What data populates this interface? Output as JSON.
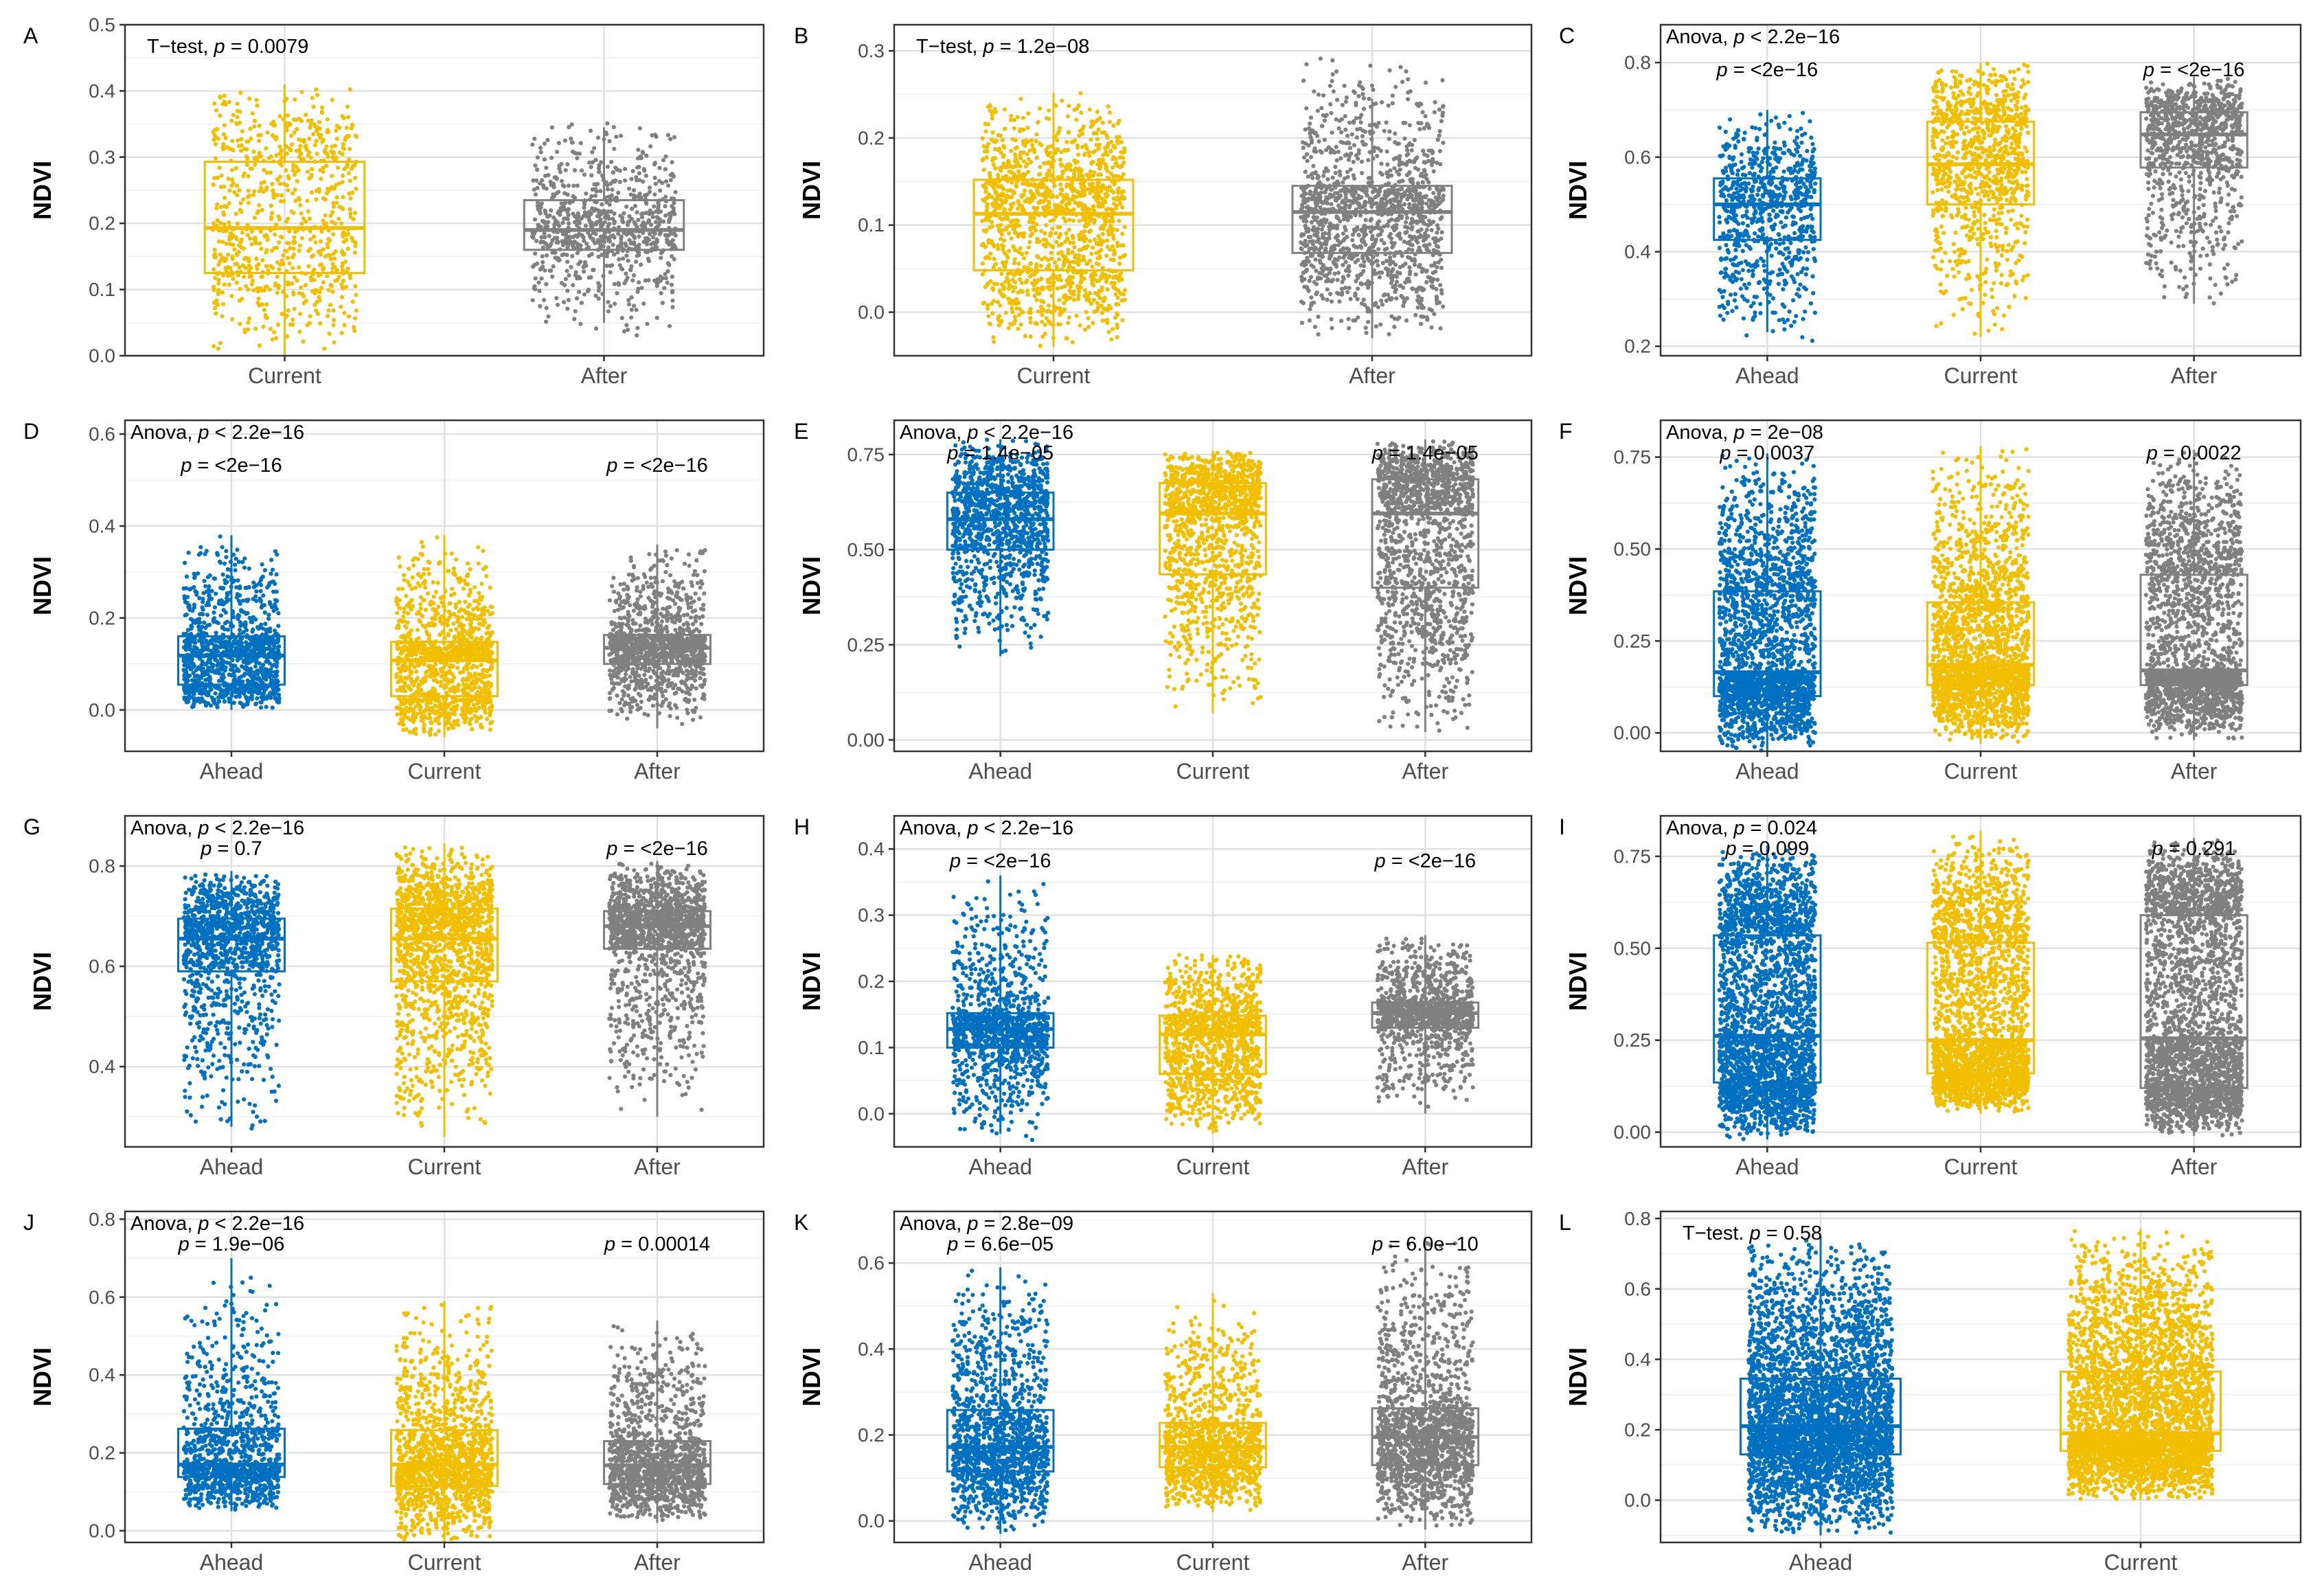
{
  "figure": {
    "colors": {
      "Ahead": "#0070C0",
      "Current": "#F2BF00",
      "After": "#808080"
    }
  },
  "chart_data": [
    {
      "panel": "A",
      "type": "box",
      "ylabel": "NDVI",
      "ylim": [
        0,
        0.5
      ],
      "yticks": [
        0.0,
        0.1,
        0.2,
        0.3,
        0.4,
        0.5
      ],
      "categories": [
        "Current",
        "After"
      ],
      "boxes": [
        {
          "group": "Current",
          "q1": 0.125,
          "median": 0.193,
          "q3": 0.293,
          "wlo": 0.0,
          "whi": 0.41,
          "ymin": 0.0,
          "ymax": 0.41,
          "n": 800
        },
        {
          "group": "After",
          "q1": 0.16,
          "median": 0.19,
          "q3": 0.235,
          "wlo": 0.05,
          "whi": 0.345,
          "ymin": 0.02,
          "ymax": 0.355,
          "n": 800
        }
      ],
      "test": {
        "name": "T−test",
        "sep": ", ",
        "p_op": "=",
        "p_value": "0.0079"
      },
      "pairwise": []
    },
    {
      "panel": "B",
      "type": "box",
      "ylabel": "NDVI",
      "ylim": [
        -0.05,
        0.33
      ],
      "yticks": [
        0.0,
        0.1,
        0.2,
        0.3
      ],
      "categories": [
        "Current",
        "After"
      ],
      "boxes": [
        {
          "group": "Current",
          "q1": 0.048,
          "median": 0.113,
          "q3": 0.152,
          "wlo": -0.04,
          "whi": 0.252,
          "ymin": -0.04,
          "ymax": 0.252,
          "n": 1400
        },
        {
          "group": "After",
          "q1": 0.068,
          "median": 0.115,
          "q3": 0.145,
          "wlo": -0.03,
          "whi": 0.245,
          "ymin": -0.03,
          "ymax": 0.3,
          "n": 1400
        }
      ],
      "test": {
        "name": "T−test",
        "sep": ", ",
        "p_op": "=",
        "p_value": "1.2e−08"
      },
      "pairwise": []
    },
    {
      "panel": "C",
      "type": "box",
      "ylabel": "NDVI",
      "ylim": [
        0.18,
        0.88
      ],
      "yticks": [
        0.2,
        0.4,
        0.6,
        0.8
      ],
      "categories": [
        "Ahead",
        "Current",
        "After"
      ],
      "boxes": [
        {
          "group": "Ahead",
          "q1": 0.425,
          "median": 0.5,
          "q3": 0.555,
          "wlo": 0.23,
          "whi": 0.7,
          "ymin": 0.2,
          "ymax": 0.7,
          "n": 800
        },
        {
          "group": "Current",
          "q1": 0.5,
          "median": 0.585,
          "q3": 0.675,
          "wlo": 0.22,
          "whi": 0.8,
          "ymin": 0.22,
          "ymax": 0.8,
          "n": 1000
        },
        {
          "group": "After",
          "q1": 0.578,
          "median": 0.648,
          "q3": 0.695,
          "wlo": 0.29,
          "whi": 0.77,
          "ymin": 0.29,
          "ymax": 0.77,
          "n": 1000
        }
      ],
      "test": {
        "name": "Anova",
        "sep": ", ",
        "p_op": "<",
        "p_value": "2.2e−16"
      },
      "pairwise": [
        {
          "group": "Ahead",
          "p_op": "=",
          "p_value": "<2e−16"
        },
        {
          "group": "After",
          "p_op": "=",
          "p_value": "<2e−16"
        }
      ]
    },
    {
      "panel": "D",
      "type": "box",
      "ylabel": "NDVI",
      "ylim": [
        -0.09,
        0.63
      ],
      "yticks": [
        0.0,
        0.2,
        0.4,
        0.6
      ],
      "categories": [
        "Ahead",
        "Current",
        "After"
      ],
      "boxes": [
        {
          "group": "Ahead",
          "q1": 0.055,
          "median": 0.118,
          "q3": 0.16,
          "wlo": 0.0,
          "whi": 0.38,
          "ymin": 0.0,
          "ymax": 0.38,
          "n": 1200
        },
        {
          "group": "Current",
          "q1": 0.03,
          "median": 0.108,
          "q3": 0.148,
          "wlo": -0.06,
          "whi": 0.38,
          "ymin": -0.06,
          "ymax": 0.38,
          "n": 1200
        },
        {
          "group": "After",
          "q1": 0.1,
          "median": 0.135,
          "q3": 0.163,
          "wlo": -0.04,
          "whi": 0.36,
          "ymin": -0.04,
          "ymax": 0.36,
          "n": 1200
        }
      ],
      "test": {
        "name": "Anova",
        "sep": ", ",
        "p_op": "<",
        "p_value": "2.2e−16"
      },
      "pairwise": [
        {
          "group": "Ahead",
          "p_op": "=",
          "p_value": "<2e−16"
        },
        {
          "group": "After",
          "p_op": "=",
          "p_value": "<2e−16"
        }
      ]
    },
    {
      "panel": "E",
      "type": "box",
      "ylabel": "NDVI",
      "ylim": [
        -0.03,
        0.84
      ],
      "yticks": [
        0.0,
        0.25,
        0.5,
        0.75
      ],
      "categories": [
        "Ahead",
        "Current",
        "After"
      ],
      "boxes": [
        {
          "group": "Ahead",
          "q1": 0.5,
          "median": 0.58,
          "q3": 0.65,
          "wlo": 0.22,
          "whi": 0.79,
          "ymin": 0.22,
          "ymax": 0.79,
          "n": 1200
        },
        {
          "group": "Current",
          "q1": 0.435,
          "median": 0.595,
          "q3": 0.675,
          "wlo": 0.07,
          "whi": 0.76,
          "ymin": 0.07,
          "ymax": 0.76,
          "n": 1300
        },
        {
          "group": "After",
          "q1": 0.4,
          "median": 0.595,
          "q3": 0.685,
          "wlo": 0.02,
          "whi": 0.79,
          "ymin": 0.02,
          "ymax": 0.79,
          "n": 1500
        }
      ],
      "test": {
        "name": "Anova",
        "sep": ", ",
        "p_op": "<",
        "p_value": "2.2e−16"
      },
      "pairwise": [
        {
          "group": "Ahead",
          "p_op": "=",
          "p_value": "1.4e−05"
        },
        {
          "group": "After",
          "p_op": "=",
          "p_value": "1.4e−05"
        }
      ]
    },
    {
      "panel": "F",
      "type": "box",
      "ylabel": "NDVI",
      "ylim": [
        -0.05,
        0.85
      ],
      "yticks": [
        0.0,
        0.25,
        0.5,
        0.75
      ],
      "categories": [
        "Ahead",
        "Current",
        "After"
      ],
      "boxes": [
        {
          "group": "Ahead",
          "q1": 0.1,
          "median": 0.165,
          "q3": 0.385,
          "wlo": -0.05,
          "whi": 0.76,
          "ymin": -0.05,
          "ymax": 0.76,
          "n": 2200
        },
        {
          "group": "Current",
          "q1": 0.13,
          "median": 0.185,
          "q3": 0.355,
          "wlo": -0.03,
          "whi": 0.78,
          "ymin": -0.03,
          "ymax": 0.78,
          "n": 2200
        },
        {
          "group": "After",
          "q1": 0.13,
          "median": 0.17,
          "q3": 0.43,
          "wlo": -0.02,
          "whi": 0.77,
          "ymin": -0.02,
          "ymax": 0.77,
          "n": 2200
        }
      ],
      "test": {
        "name": "Anova",
        "sep": ", ",
        "p_op": "=",
        "p_value": "2e−08"
      },
      "pairwise": [
        {
          "group": "Ahead",
          "p_op": "=",
          "p_value": "0.0037"
        },
        {
          "group": "After",
          "p_op": "=",
          "p_value": "0.0022"
        }
      ]
    },
    {
      "panel": "G",
      "type": "box",
      "ylabel": "NDVI",
      "ylim": [
        0.24,
        0.9
      ],
      "yticks": [
        0.4,
        0.6,
        0.8
      ],
      "categories": [
        "Ahead",
        "Current",
        "After"
      ],
      "boxes": [
        {
          "group": "Ahead",
          "q1": 0.59,
          "median": 0.655,
          "q3": 0.695,
          "wlo": 0.28,
          "whi": 0.79,
          "ymin": 0.27,
          "ymax": 0.79,
          "n": 1200
        },
        {
          "group": "Current",
          "q1": 0.57,
          "median": 0.655,
          "q3": 0.715,
          "wlo": 0.26,
          "whi": 0.845,
          "ymin": 0.26,
          "ymax": 0.845,
          "n": 1500
        },
        {
          "group": "After",
          "q1": 0.635,
          "median": 0.68,
          "q3": 0.71,
          "wlo": 0.3,
          "whi": 0.81,
          "ymin": 0.3,
          "ymax": 0.81,
          "n": 1500
        }
      ],
      "test": {
        "name": "Anova",
        "sep": ", ",
        "p_op": "<",
        "p_value": "2.2e−16"
      },
      "pairwise": [
        {
          "group": "Ahead",
          "p_op": "=",
          "p_value": "0.7"
        },
        {
          "group": "After",
          "p_op": "=",
          "p_value": "<2e−16"
        }
      ]
    },
    {
      "panel": "H",
      "type": "box",
      "ylabel": "NDVI",
      "ylim": [
        -0.05,
        0.45
      ],
      "yticks": [
        0.0,
        0.1,
        0.2,
        0.3,
        0.4
      ],
      "categories": [
        "Ahead",
        "Current",
        "After"
      ],
      "boxes": [
        {
          "group": "Ahead",
          "q1": 0.1,
          "median": 0.128,
          "q3": 0.152,
          "wlo": -0.03,
          "whi": 0.36,
          "ymin": -0.04,
          "ymax": 0.36,
          "n": 1200
        },
        {
          "group": "Current",
          "q1": 0.06,
          "median": 0.12,
          "q3": 0.148,
          "wlo": -0.03,
          "whi": 0.24,
          "ymin": -0.03,
          "ymax": 0.25,
          "n": 1200
        },
        {
          "group": "After",
          "q1": 0.13,
          "median": 0.152,
          "q3": 0.168,
          "wlo": 0.0,
          "whi": 0.27,
          "ymin": 0.0,
          "ymax": 0.27,
          "n": 1200
        }
      ],
      "test": {
        "name": "Anova",
        "sep": ", ",
        "p_op": "<",
        "p_value": "2.2e−16"
      },
      "pairwise": [
        {
          "group": "Ahead",
          "p_op": "=",
          "p_value": "<2e−16"
        },
        {
          "group": "After",
          "p_op": "=",
          "p_value": "<2e−16"
        }
      ]
    },
    {
      "panel": "I",
      "type": "box",
      "ylabel": "NDVI",
      "ylim": [
        -0.04,
        0.86
      ],
      "yticks": [
        0.0,
        0.25,
        0.5,
        0.75
      ],
      "categories": [
        "Ahead",
        "Current",
        "After"
      ],
      "boxes": [
        {
          "group": "Ahead",
          "q1": 0.135,
          "median": 0.262,
          "q3": 0.535,
          "wlo": -0.02,
          "whi": 0.78,
          "ymin": -0.02,
          "ymax": 0.78,
          "n": 2800
        },
        {
          "group": "Current",
          "q1": 0.16,
          "median": 0.25,
          "q3": 0.515,
          "wlo": 0.05,
          "whi": 0.82,
          "ymin": 0.05,
          "ymax": 0.82,
          "n": 2400
        },
        {
          "group": "After",
          "q1": 0.12,
          "median": 0.255,
          "q3": 0.59,
          "wlo": -0.01,
          "whi": 0.8,
          "ymin": -0.01,
          "ymax": 0.8,
          "n": 2800
        }
      ],
      "test": {
        "name": "Anova",
        "sep": ", ",
        "p_op": "=",
        "p_value": "0.024"
      },
      "pairwise": [
        {
          "group": "Ahead",
          "p_op": "=",
          "p_value": "0.099"
        },
        {
          "group": "After",
          "p_op": "=",
          "p_value": "0.291"
        }
      ]
    },
    {
      "panel": "J",
      "type": "box",
      "ylabel": "NDVI",
      "ylim": [
        -0.03,
        0.82
      ],
      "yticks": [
        0.0,
        0.2,
        0.4,
        0.6,
        0.8
      ],
      "categories": [
        "Ahead",
        "Current",
        "After"
      ],
      "boxes": [
        {
          "group": "Ahead",
          "q1": 0.138,
          "median": 0.17,
          "q3": 0.262,
          "wlo": 0.05,
          "whi": 0.7,
          "ymin": 0.05,
          "ymax": 0.7,
          "n": 1200
        },
        {
          "group": "Current",
          "q1": 0.115,
          "median": 0.17,
          "q3": 0.258,
          "wlo": -0.03,
          "whi": 0.59,
          "ymin": -0.03,
          "ymax": 0.59,
          "n": 1400
        },
        {
          "group": "After",
          "q1": 0.12,
          "median": 0.168,
          "q3": 0.23,
          "wlo": 0.02,
          "whi": 0.54,
          "ymin": 0.02,
          "ymax": 0.54,
          "n": 1300
        }
      ],
      "test": {
        "name": "Anova",
        "sep": ", ",
        "p_op": "<",
        "p_value": "2.2e−16"
      },
      "pairwise": [
        {
          "group": "Ahead",
          "p_op": "=",
          "p_value": "1.9e−06"
        },
        {
          "group": "After",
          "p_op": "=",
          "p_value": "0.00014"
        }
      ]
    },
    {
      "panel": "K",
      "type": "box",
      "ylabel": "NDVI",
      "ylim": [
        -0.05,
        0.72
      ],
      "yticks": [
        0.0,
        0.2,
        0.4,
        0.6
      ],
      "categories": [
        "Ahead",
        "Current",
        "After"
      ],
      "boxes": [
        {
          "group": "Ahead",
          "q1": 0.115,
          "median": 0.172,
          "q3": 0.258,
          "wlo": -0.03,
          "whi": 0.59,
          "ymin": -0.03,
          "ymax": 0.59,
          "n": 1400
        },
        {
          "group": "Current",
          "q1": 0.125,
          "median": 0.172,
          "q3": 0.228,
          "wlo": 0.02,
          "whi": 0.53,
          "ymin": 0.02,
          "ymax": 0.53,
          "n": 1200
        },
        {
          "group": "After",
          "q1": 0.13,
          "median": 0.195,
          "q3": 0.262,
          "wlo": -0.02,
          "whi": 0.66,
          "ymin": -0.02,
          "ymax": 0.66,
          "n": 1600
        }
      ],
      "test": {
        "name": "Anova",
        "sep": ", ",
        "p_op": "=",
        "p_value": "2.8e−09"
      },
      "pairwise": [
        {
          "group": "Ahead",
          "p_op": "=",
          "p_value": "6.6e−05"
        },
        {
          "group": "After",
          "p_op": "=",
          "p_value": "6.0e−10"
        }
      ]
    },
    {
      "panel": "L",
      "type": "box",
      "ylabel": "NDVI",
      "ylim": [
        -0.12,
        0.82
      ],
      "yticks": [
        0.0,
        0.2,
        0.4,
        0.6,
        0.8
      ],
      "categories": [
        "Ahead",
        "Current"
      ],
      "boxes": [
        {
          "group": "Ahead",
          "q1": 0.13,
          "median": 0.21,
          "q3": 0.345,
          "wlo": -0.1,
          "whi": 0.75,
          "ymin": -0.1,
          "ymax": 0.75,
          "n": 4000
        },
        {
          "group": "Current",
          "q1": 0.14,
          "median": 0.19,
          "q3": 0.365,
          "wlo": 0.0,
          "whi": 0.77,
          "ymin": 0.0,
          "ymax": 0.77,
          "n": 4000
        }
      ],
      "test": {
        "name": "T−test",
        "sep": ". ",
        "p_op": "=",
        "p_value": "0.58"
      },
      "pairwise": []
    }
  ]
}
